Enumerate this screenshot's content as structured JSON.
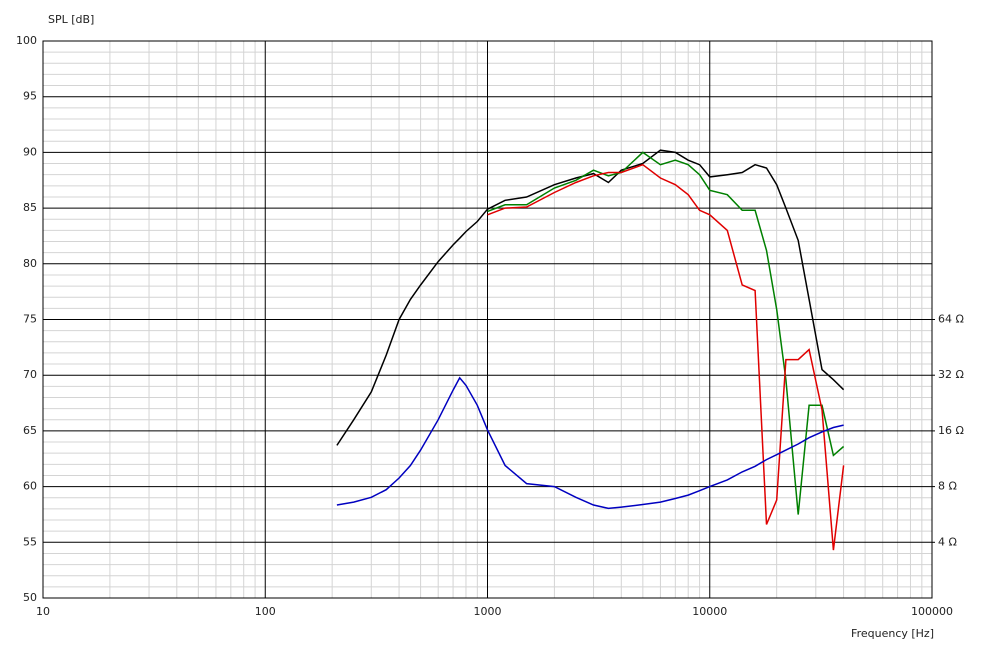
{
  "chart_data": {
    "type": "line",
    "ylabel": "SPL [dB]",
    "xlabel": "Frequency [Hz]",
    "xscale": "log",
    "xlim": [
      10,
      100000
    ],
    "xticks": [
      10,
      100,
      1000,
      10000,
      100000
    ],
    "ylim": [
      50,
      100
    ],
    "yticks": [
      50,
      55,
      60,
      65,
      70,
      75,
      80,
      85,
      90,
      95,
      100
    ],
    "y2scale": "log",
    "y2lim": [
      2,
      2048
    ],
    "y2ticks": [
      {
        "value": 4,
        "label": "4 Ω"
      },
      {
        "value": 8,
        "label": "8 Ω"
      },
      {
        "value": 16,
        "label": "16 Ω"
      },
      {
        "value": 32,
        "label": "32 Ω"
      },
      {
        "value": 64,
        "label": "64 Ω"
      }
    ],
    "grid": true,
    "x": [
      210,
      250,
      300,
      350,
      400,
      450,
      500,
      600,
      700,
      750,
      800,
      900,
      1000,
      1200,
      1500,
      2000,
      2500,
      3000,
      3500,
      4000,
      5000,
      6000,
      7000,
      8000,
      9000,
      10000,
      12000,
      14000,
      16000,
      18000,
      20000,
      22000,
      25000,
      28000,
      32000,
      36000,
      40000
    ],
    "series": [
      {
        "color": "#000000",
        "values": [
          63.7,
          66,
          68.5,
          71.8,
          75,
          76.8,
          78.1,
          80.2,
          81.7,
          82.3,
          82.9,
          83.8,
          84.9,
          85.7,
          86,
          87.1,
          87.7,
          88.1,
          87.3,
          88.4,
          89,
          90.2,
          90,
          89.3,
          88.9,
          87.8,
          88,
          88.2,
          88.9,
          88.6,
          87.1,
          85,
          82.1,
          76.8,
          70.5,
          69.6,
          68.7
        ]
      },
      {
        "color": "#008000",
        "values": [
          null,
          null,
          null,
          null,
          null,
          null,
          null,
          null,
          null,
          null,
          null,
          null,
          84.7,
          85.3,
          85.3,
          86.8,
          87.5,
          88.4,
          87.9,
          88.2,
          90,
          88.9,
          89.3,
          88.9,
          88,
          86.6,
          86.2,
          84.8,
          84.8,
          81.2,
          75.9,
          69.6,
          57.5,
          67.3,
          67.3,
          62.8,
          63.6
        ]
      },
      {
        "color": "#e00000",
        "values": [
          null,
          null,
          null,
          null,
          null,
          null,
          null,
          null,
          null,
          null,
          null,
          null,
          84.4,
          85,
          85.1,
          86.4,
          87.3,
          87.9,
          88.2,
          88.2,
          88.9,
          87.7,
          87.1,
          86.2,
          84.8,
          84.4,
          83,
          78.1,
          77.6,
          56.6,
          58.8,
          71.4,
          71.4,
          72.3,
          66.9,
          54.3,
          61.9
        ]
      },
      {
        "color": "#0000c0",
        "axis": "y2",
        "values": [
          6.36,
          6.6,
          7.0,
          7.7,
          8.9,
          10.4,
          12.6,
          18.4,
          26.6,
          31,
          28.2,
          22,
          16.2,
          10.4,
          8.3,
          8.0,
          7.0,
          6.36,
          6.1,
          6.2,
          6.4,
          6.6,
          6.9,
          7.2,
          7.6,
          8,
          8.7,
          9.6,
          10.3,
          11.2,
          11.9,
          12.6,
          13.6,
          14.7,
          15.8,
          16.7,
          17.2
        ]
      }
    ]
  }
}
